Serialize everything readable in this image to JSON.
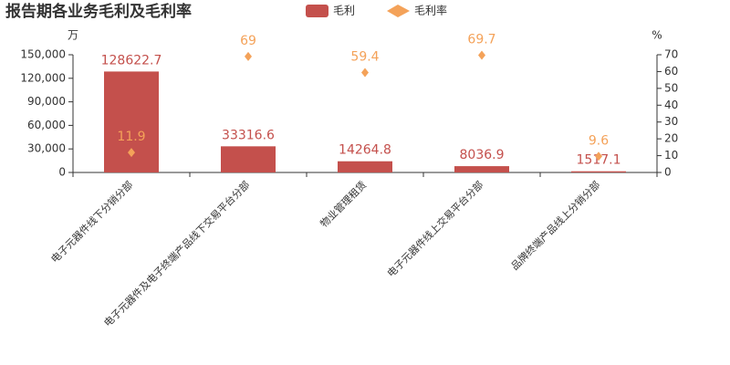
{
  "chart_data": {
    "type": "bar",
    "title": "报告期各业务毛利及毛利率",
    "categories": [
      "电子元器件线下分销分部",
      "电子元器件及电子终端产品线下交易平台分部",
      "物业管理租赁",
      "电子元器件线上交易平台分部",
      "品牌终端产品线上分销分部"
    ],
    "series": [
      {
        "name": "毛利",
        "type": "bar",
        "color": "#c4504c",
        "values": [
          128622.7,
          33316.6,
          14264.8,
          8036.9,
          1517.1
        ]
      },
      {
        "name": "毛利率",
        "type": "scatter",
        "axis": "y2",
        "color": "#f4a259",
        "values": [
          11.9,
          69,
          59.4,
          69.7,
          9.6
        ]
      }
    ],
    "ylabel": "万",
    "y2label": "%",
    "ylim": [
      0,
      150000
    ],
    "yticks": [
      0,
      {
        "value": 30000,
        "label": "30,000"
      },
      {
        "value": 60000,
        "label": "60,000"
      },
      {
        "value": 90000,
        "label": "90,000"
      },
      {
        "value": 120000,
        "label": "120,000"
      },
      {
        "value": 150000,
        "label": "150,000"
      }
    ],
    "y2lim": [
      0,
      70
    ],
    "y2ticks": [
      0,
      10,
      20,
      30,
      40,
      50,
      60,
      70
    ],
    "legend": "top"
  }
}
